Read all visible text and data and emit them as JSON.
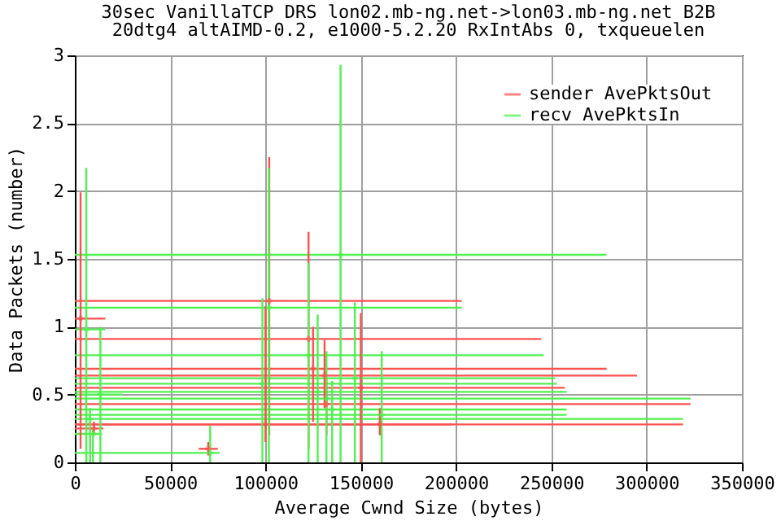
{
  "chart_data": {
    "type": "scatter",
    "title": "30sec VanillaTCP DRS lon02.mb-ng.net->lon03.mb-ng.net B2B",
    "subtitle": "20dtg4 altAIMD-0.2, e1000-5.2.20 RxIntAbs 0, txqueuelen",
    "xlabel": "Average Cwnd Size (bytes)",
    "ylabel": "Data Packets (number)",
    "xlim": [
      0,
      350000
    ],
    "xticks": [
      0,
      50000,
      100000,
      150000,
      200000,
      250000,
      300000,
      350000
    ],
    "ylim": [
      0,
      3
    ],
    "yticks": [
      0,
      0.5,
      1,
      1.5,
      2,
      2.5,
      3
    ],
    "grid": true,
    "legend": "top right",
    "marker": "cross",
    "series": [
      {
        "name": "sender AvePktsOut",
        "color": "#ff5050",
        "x": [
          3000,
          102000,
          122600,
          125000,
          131000,
          150000,
          132000,
          160000,
          70000,
          10000,
          100000
        ],
        "values": [
          1.06,
          1.19,
          0.91,
          0.69,
          0.64,
          0.55,
          0.43,
          0.28,
          0.1,
          0.25,
          0.28
        ],
        "errors": [
          [
            0.1,
            1.99
          ],
          [
            0.2,
            2.25
          ],
          [
            0.1,
            1.7
          ],
          [
            0.3,
            1.0
          ],
          [
            0.4,
            0.9
          ],
          [
            0,
            1.1
          ],
          [
            0.2,
            0.62
          ],
          [
            0.2,
            0.4
          ],
          [
            0.05,
            0.15
          ],
          [
            0.2,
            0.3
          ],
          [
            0.15,
            1.15
          ]
        ],
        "xerrors": [
          [
            0,
            16000
          ],
          [
            0,
            203000
          ],
          [
            0,
            244800
          ],
          [
            0,
            279000
          ],
          [
            0,
            295000
          ],
          [
            0,
            257000
          ],
          [
            0,
            323000
          ],
          [
            0,
            319000
          ],
          [
            65000,
            75000
          ],
          [
            0,
            15000
          ],
          [
            0,
            198000
          ]
        ]
      },
      {
        "name": "recv AvePktsIn",
        "color": "#50f050",
        "x": [
          6000,
          101800,
          139400,
          122600,
          13400,
          98400,
          127400,
          132000,
          161000,
          71000,
          146900,
          9500,
          8000,
          135000
        ],
        "values": [
          0.98,
          1.14,
          1.53,
          0.79,
          0.5,
          0.58,
          0.52,
          0.47,
          0.35,
          0.07,
          0.62,
          0.21,
          0.32,
          0.39
        ],
        "errors": [
          [
            0,
            2.17
          ],
          [
            0,
            2.17
          ],
          [
            0,
            2.93
          ],
          [
            0,
            1.47
          ],
          [
            0,
            1.0
          ],
          [
            0,
            1.21
          ],
          [
            0,
            1.09
          ],
          [
            0,
            0.82
          ],
          [
            0,
            0.82
          ],
          [
            0,
            0.27
          ],
          [
            0,
            1.18
          ],
          [
            0,
            0.25
          ],
          [
            0,
            0.4
          ],
          [
            0,
            0.6
          ]
        ],
        "xerrors": [
          [
            0,
            16000
          ],
          [
            0,
            203000
          ],
          [
            0,
            278900
          ],
          [
            0,
            246000
          ],
          [
            0,
            25000
          ],
          [
            0,
            253000
          ],
          [
            0,
            258000
          ],
          [
            0,
            323000
          ],
          [
            0,
            258000
          ],
          [
            0,
            76000
          ],
          [
            0,
            252000
          ],
          [
            0,
            14000
          ],
          [
            0,
            319000
          ],
          [
            0,
            258000
          ]
        ]
      }
    ]
  }
}
